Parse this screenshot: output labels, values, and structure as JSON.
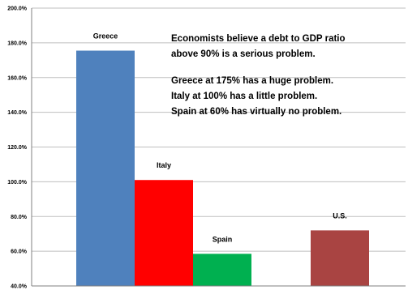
{
  "chart_data": {
    "type": "bar",
    "categories": [
      "Greece",
      "Italy",
      "Spain",
      "U.S."
    ],
    "values": [
      175.5,
      101,
      58.5,
      72
    ],
    "colors": [
      "#4f81bd",
      "#ff0000",
      "#00b050",
      "#a94442"
    ],
    "ylim": [
      40,
      200
    ],
    "yticks": [
      "40.0%",
      "60.0%",
      "80.0%",
      "100.0%",
      "120.0%",
      "140.0%",
      "160.0%",
      "180.0%",
      "200.0%"
    ],
    "grid": true,
    "annotation": [
      "Economists believe a debt to GDP ratio",
      "above 90% is  a serious problem.",
      "",
      "Greece at 175% has a huge problem.",
      "Italy at 100% has a little problem.",
      "Spain at 60%  has virtually no problem."
    ]
  }
}
